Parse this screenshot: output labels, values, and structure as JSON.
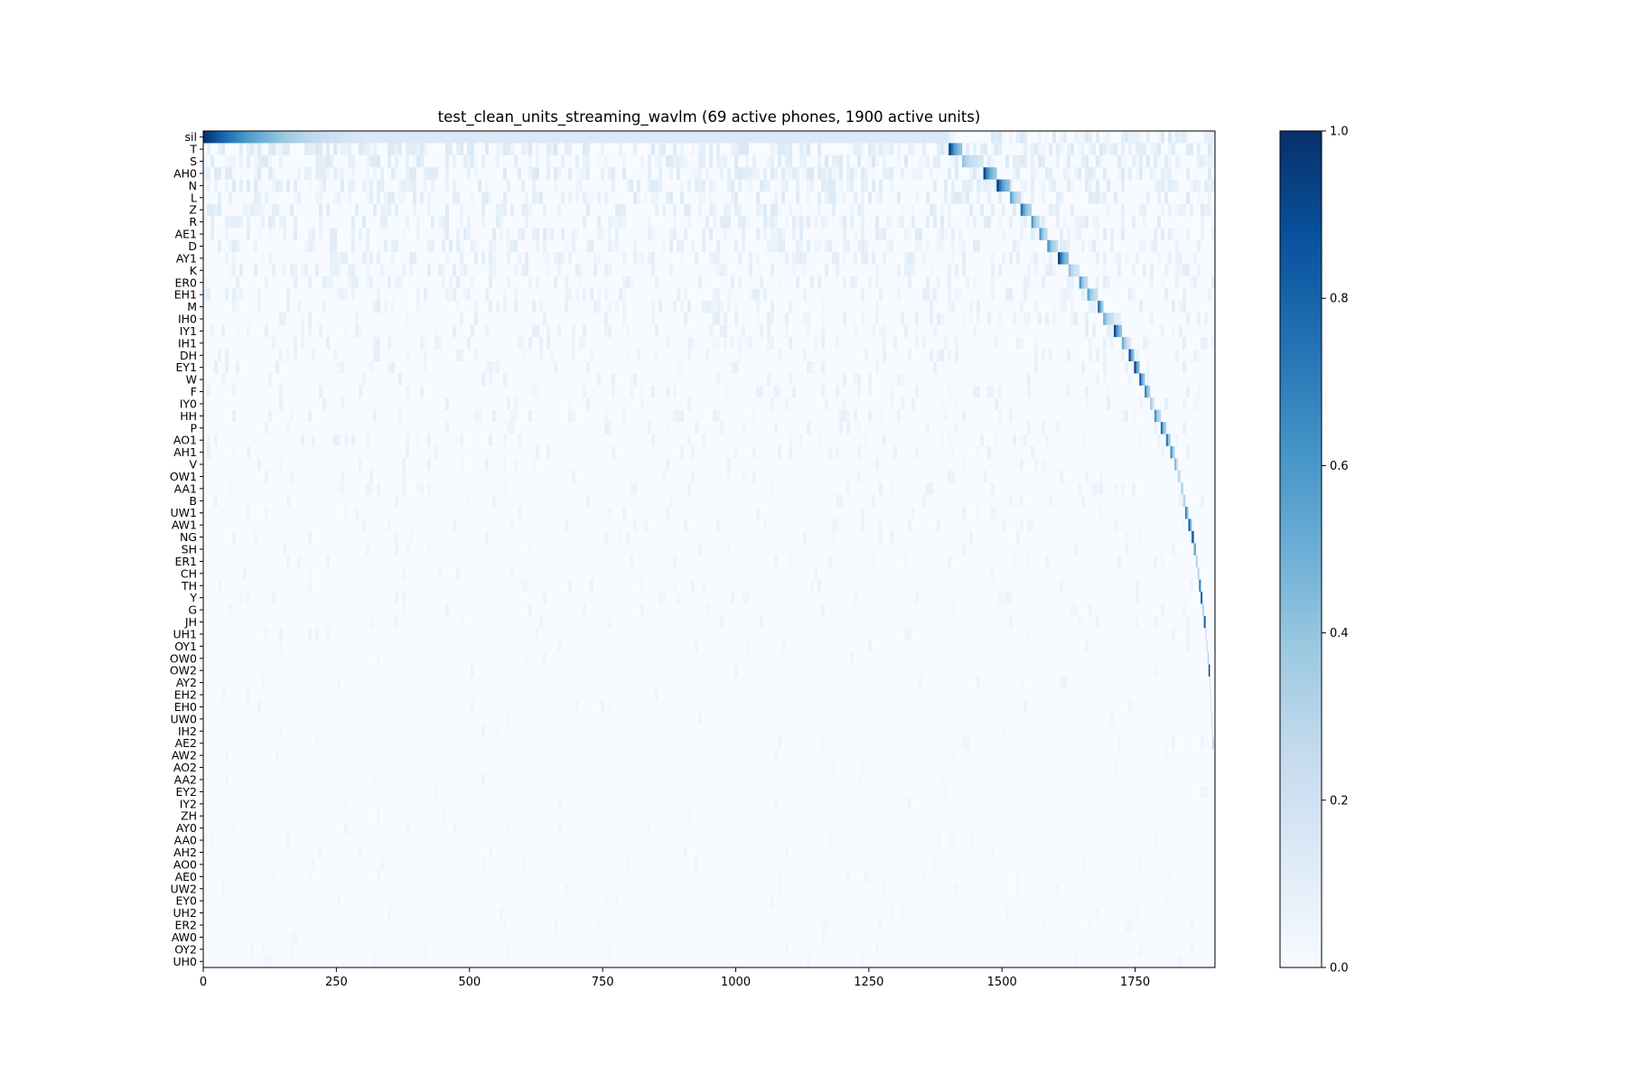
{
  "chart_data": {
    "type": "heatmap",
    "title": "test_clean_units_streaming_wavlm (69 active phones, 1900 active units)",
    "xlabel": "",
    "ylabel": "",
    "xlim": [
      0,
      1900
    ],
    "x_ticks": [
      0,
      250,
      500,
      750,
      1000,
      1250,
      1500,
      1750
    ],
    "rows": [
      "sil",
      "T",
      "S",
      "AH0",
      "N",
      "L",
      "Z",
      "R",
      "AE1",
      "D",
      "AY1",
      "K",
      "ER0",
      "EH1",
      "M",
      "IH0",
      "IY1",
      "IH1",
      "DH",
      "EY1",
      "W",
      "F",
      "IY0",
      "HH",
      "P",
      "AO1",
      "AH1",
      "V",
      "OW1",
      "AA1",
      "B",
      "UW1",
      "AW1",
      "NG",
      "SH",
      "ER1",
      "CH",
      "TH",
      "Y",
      "G",
      "JH",
      "UH1",
      "OY1",
      "OW0",
      "OW2",
      "AY2",
      "EH2",
      "EH0",
      "UW0",
      "IH2",
      "AE2",
      "AW2",
      "AO2",
      "AA2",
      "EY2",
      "IY2",
      "ZH",
      "AY0",
      "AA0",
      "AH2",
      "AO0",
      "AE0",
      "UW2",
      "EY0",
      "UH2",
      "ER2",
      "AW0",
      "OY2",
      "UH0"
    ],
    "diagonal_units": [
      {
        "phone": "sil",
        "start": 0,
        "end": 1400,
        "peak": 1.0
      },
      {
        "phone": "T",
        "start": 1400,
        "end": 1425,
        "peak": 0.95
      },
      {
        "phone": "S",
        "start": 1425,
        "end": 1465,
        "peak": 0.4
      },
      {
        "phone": "AH0",
        "start": 1465,
        "end": 1490,
        "peak": 0.9
      },
      {
        "phone": "N",
        "start": 1490,
        "end": 1515,
        "peak": 0.95
      },
      {
        "phone": "L",
        "start": 1515,
        "end": 1535,
        "peak": 0.55
      },
      {
        "phone": "Z",
        "start": 1535,
        "end": 1555,
        "peak": 0.75
      },
      {
        "phone": "R",
        "start": 1555,
        "end": 1570,
        "peak": 0.6
      },
      {
        "phone": "AE1",
        "start": 1570,
        "end": 1585,
        "peak": 0.6
      },
      {
        "phone": "D",
        "start": 1585,
        "end": 1605,
        "peak": 0.6
      },
      {
        "phone": "AY1",
        "start": 1605,
        "end": 1625,
        "peak": 0.95
      },
      {
        "phone": "K",
        "start": 1625,
        "end": 1645,
        "peak": 0.4
      },
      {
        "phone": "ER0",
        "start": 1645,
        "end": 1660,
        "peak": 0.6
      },
      {
        "phone": "EH1",
        "start": 1660,
        "end": 1680,
        "peak": 0.55
      },
      {
        "phone": "M",
        "start": 1680,
        "end": 1690,
        "peak": 0.8
      },
      {
        "phone": "IH0",
        "start": 1690,
        "end": 1710,
        "peak": 0.5
      },
      {
        "phone": "IY1",
        "start": 1710,
        "end": 1725,
        "peak": 0.9
      },
      {
        "phone": "IH1",
        "start": 1725,
        "end": 1738,
        "peak": 0.5
      },
      {
        "phone": "DH",
        "start": 1738,
        "end": 1748,
        "peak": 0.9
      },
      {
        "phone": "EY1",
        "start": 1748,
        "end": 1758,
        "peak": 0.95
      },
      {
        "phone": "W",
        "start": 1758,
        "end": 1768,
        "peak": 0.85
      },
      {
        "phone": "F",
        "start": 1768,
        "end": 1778,
        "peak": 0.7
      },
      {
        "phone": "IY0",
        "start": 1778,
        "end": 1786,
        "peak": 0.35
      },
      {
        "phone": "HH",
        "start": 1786,
        "end": 1798,
        "peak": 0.6
      },
      {
        "phone": "P",
        "start": 1798,
        "end": 1808,
        "peak": 0.75
      },
      {
        "phone": "AO1",
        "start": 1808,
        "end": 1816,
        "peak": 0.7
      },
      {
        "phone": "AH1",
        "start": 1816,
        "end": 1824,
        "peak": 0.6
      },
      {
        "phone": "V",
        "start": 1824,
        "end": 1830,
        "peak": 0.45
      },
      {
        "phone": "OW1",
        "start": 1830,
        "end": 1836,
        "peak": 0.3
      },
      {
        "phone": "AA1",
        "start": 1836,
        "end": 1840,
        "peak": 0.3
      },
      {
        "phone": "B",
        "start": 1840,
        "end": 1844,
        "peak": 0.3
      },
      {
        "phone": "UW1",
        "start": 1844,
        "end": 1850,
        "peak": 0.7
      },
      {
        "phone": "AW1",
        "start": 1850,
        "end": 1856,
        "peak": 0.85
      },
      {
        "phone": "NG",
        "start": 1856,
        "end": 1860,
        "peak": 0.8
      },
      {
        "phone": "SH",
        "start": 1860,
        "end": 1864,
        "peak": 0.5
      },
      {
        "phone": "ER1",
        "start": 1864,
        "end": 1867,
        "peak": 0.3
      },
      {
        "phone": "CH",
        "start": 1867,
        "end": 1870,
        "peak": 0.3
      },
      {
        "phone": "TH",
        "start": 1870,
        "end": 1873,
        "peak": 0.7
      },
      {
        "phone": "Y",
        "start": 1873,
        "end": 1876,
        "peak": 0.8
      },
      {
        "phone": "G",
        "start": 1876,
        "end": 1879,
        "peak": 0.3
      },
      {
        "phone": "JH",
        "start": 1879,
        "end": 1882,
        "peak": 0.8
      },
      {
        "phone": "UH1",
        "start": 1882,
        "end": 1884,
        "peak": 0.2
      },
      {
        "phone": "OY1",
        "start": 1884,
        "end": 1886,
        "peak": 0.2
      },
      {
        "phone": "OW0",
        "start": 1886,
        "end": 1888,
        "peak": 0.3
      },
      {
        "phone": "OW2",
        "start": 1888,
        "end": 1890,
        "peak": 0.9
      },
      {
        "phone": "AY2",
        "start": 1890,
        "end": 1891,
        "peak": 0.2
      },
      {
        "phone": "EH2",
        "start": 1891,
        "end": 1892,
        "peak": 0.2
      },
      {
        "phone": "EH0",
        "start": 1892,
        "end": 1893,
        "peak": 0.2
      },
      {
        "phone": "UW0",
        "start": 1893,
        "end": 1894,
        "peak": 0.3
      },
      {
        "phone": "IH2",
        "start": 1894,
        "end": 1895,
        "peak": 0.2
      },
      {
        "phone": "AE2",
        "start": 1895,
        "end": 1897,
        "peak": 0.3
      }
    ],
    "colorbar": {
      "colormap": "Blues",
      "range": [
        0.0,
        1.0
      ],
      "ticks": [
        0.0,
        0.2,
        0.4,
        0.6,
        0.8,
        1.0
      ],
      "tick_labels": [
        "0.0",
        "0.2",
        "0.4",
        "0.6",
        "0.8",
        "1.0"
      ]
    },
    "colors": {
      "low": "#f7fbff",
      "high": "#08306b"
    }
  }
}
